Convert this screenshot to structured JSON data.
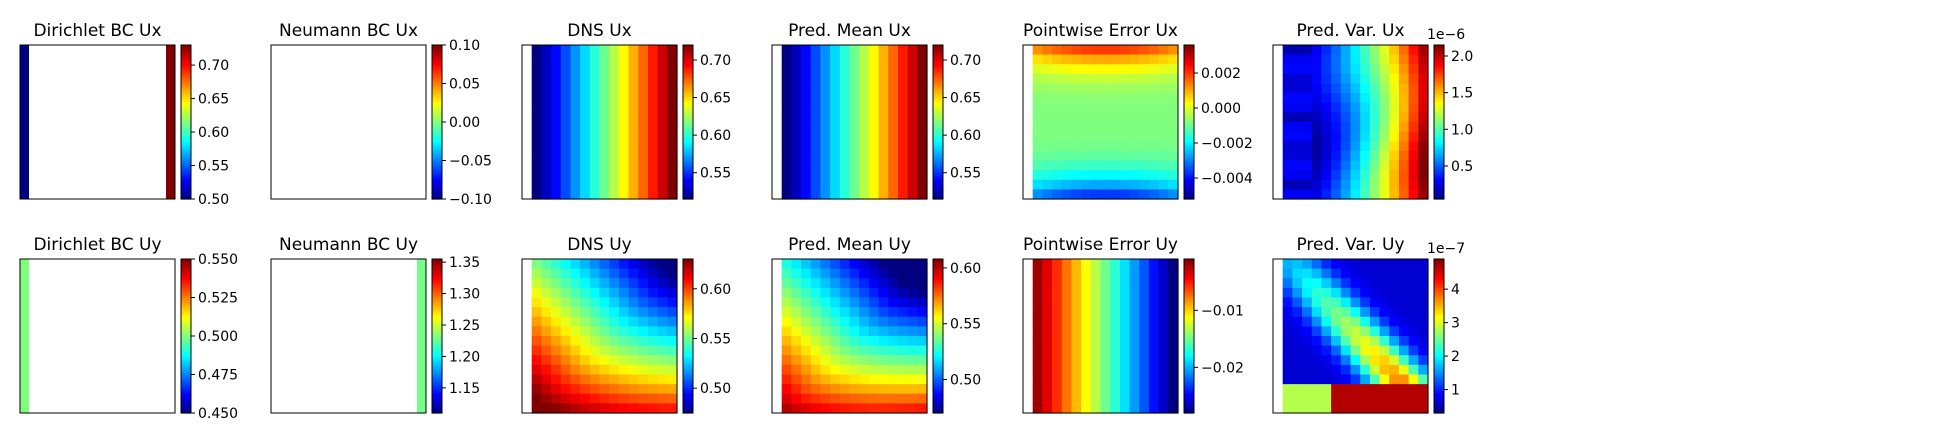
{
  "colormap": "jet",
  "colors": {
    "frame": "#000000",
    "background": "#ffffff"
  },
  "chart_data": [
    {
      "type": "heatmap",
      "title": "Dirichlet BC Ux",
      "field": "dirichlet_left_right",
      "colorbar": {
        "min": 0.5,
        "max": 0.73,
        "ticks": [
          0.5,
          0.55,
          0.6,
          0.65,
          0.7
        ],
        "tick_labels": [
          "0.50",
          "0.55",
          "0.60",
          "0.65",
          "0.70"
        ],
        "multiplier": ""
      },
      "boundary": {
        "left": 0.5,
        "right": 0.73
      }
    },
    {
      "type": "heatmap",
      "title": "Neumann BC Ux",
      "field": "empty",
      "colorbar": {
        "min": -0.1,
        "max": 0.1,
        "ticks": [
          -0.1,
          -0.05,
          0.0,
          0.05,
          0.1
        ],
        "tick_labels": [
          "−0.10",
          "−0.05",
          "0.00",
          "0.05",
          "0.10"
        ],
        "multiplier": ""
      }
    },
    {
      "type": "heatmap",
      "title": "DNS Ux",
      "field": "ux_gradient",
      "min": 0.515,
      "max": 0.72,
      "colorbar": {
        "min": 0.515,
        "max": 0.72,
        "ticks": [
          0.55,
          0.6,
          0.65,
          0.7
        ],
        "tick_labels": [
          "0.55",
          "0.60",
          "0.65",
          "0.70"
        ],
        "multiplier": ""
      }
    },
    {
      "type": "heatmap",
      "title": "Pred. Mean Ux",
      "field": "ux_gradient",
      "min": 0.515,
      "max": 0.72,
      "colorbar": {
        "min": 0.515,
        "max": 0.72,
        "ticks": [
          0.55,
          0.6,
          0.65,
          0.7
        ],
        "tick_labels": [
          "0.55",
          "0.60",
          "0.65",
          "0.70"
        ],
        "multiplier": ""
      }
    },
    {
      "type": "heatmap",
      "title": "Pointwise Error Ux",
      "field": "ux_error",
      "min": -0.0052,
      "max": 0.0036,
      "colorbar": {
        "min": -0.0052,
        "max": 0.0036,
        "ticks": [
          -0.004,
          -0.002,
          0.0,
          0.002
        ],
        "tick_labels": [
          "−0.004",
          "−0.002",
          "0.000",
          "0.002"
        ],
        "multiplier": ""
      }
    },
    {
      "type": "heatmap",
      "title": "Pred. Var. Ux",
      "field": "ux_var",
      "min": 0.05,
      "max": 2.15,
      "colorbar": {
        "min": 0.05,
        "max": 2.15,
        "ticks": [
          0.5,
          1.0,
          1.5,
          2.0
        ],
        "tick_labels": [
          "0.5",
          "1.0",
          "1.5",
          "2.0"
        ],
        "multiplier": "1e−6"
      }
    },
    {
      "type": "heatmap",
      "title": "Dirichlet BC Uy",
      "field": "dirichlet_left",
      "colorbar": {
        "min": 0.45,
        "max": 0.55,
        "ticks": [
          0.45,
          0.475,
          0.5,
          0.525,
          0.55
        ],
        "tick_labels": [
          "0.450",
          "0.475",
          "0.500",
          "0.525",
          "0.550"
        ],
        "multiplier": ""
      },
      "boundary": {
        "left": 0.5
      }
    },
    {
      "type": "heatmap",
      "title": "Neumann BC Uy",
      "field": "neumann_right",
      "colorbar": {
        "min": 1.11,
        "max": 1.355,
        "ticks": [
          1.15,
          1.2,
          1.25,
          1.3,
          1.35
        ],
        "tick_labels": [
          "1.15",
          "1.20",
          "1.25",
          "1.30",
          "1.35"
        ],
        "multiplier": ""
      },
      "boundary": {
        "right": 1.23
      }
    },
    {
      "type": "heatmap",
      "title": "DNS Uy",
      "field": "uy_diag",
      "min": 0.475,
      "max": 0.63,
      "colorbar": {
        "min": 0.475,
        "max": 0.63,
        "ticks": [
          0.5,
          0.55,
          0.6
        ],
        "tick_labels": [
          "0.50",
          "0.55",
          "0.60"
        ],
        "multiplier": ""
      }
    },
    {
      "type": "heatmap",
      "title": "Pred. Mean Uy",
      "field": "uy_diag2",
      "min": 0.47,
      "max": 0.608,
      "colorbar": {
        "min": 0.47,
        "max": 0.608,
        "ticks": [
          0.5,
          0.55,
          0.6
        ],
        "tick_labels": [
          "0.50",
          "0.55",
          "0.60"
        ],
        "multiplier": ""
      }
    },
    {
      "type": "heatmap",
      "title": "Pointwise Error Uy",
      "field": "uy_error",
      "min": -0.028,
      "max": -0.001,
      "colorbar": {
        "min": -0.028,
        "max": -0.001,
        "ticks": [
          -0.02,
          -0.01
        ],
        "tick_labels": [
          "−0.02",
          "−0.01"
        ],
        "multiplier": ""
      }
    },
    {
      "type": "heatmap",
      "title": "Pred. Var. Uy",
      "field": "uy_var",
      "min": 0.3,
      "max": 4.9,
      "colorbar": {
        "min": 0.3,
        "max": 4.9,
        "ticks": [
          1,
          2,
          3,
          4
        ],
        "tick_labels": [
          "1",
          "2",
          "3",
          "4"
        ],
        "multiplier": "1e−7"
      }
    }
  ]
}
